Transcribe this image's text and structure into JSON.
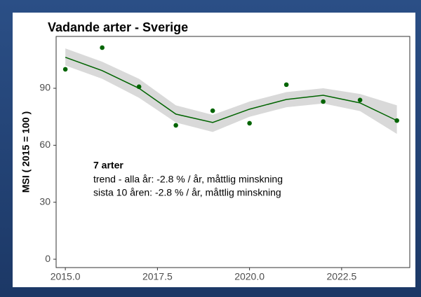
{
  "chart_data": {
    "type": "line",
    "title": "Vadande arter - Sverige",
    "ylabel": "MSI ( 2015 = 100 )",
    "annotations": [
      "7 arter",
      "trend - alla år: -2.8 % / år, måttlig minskning",
      "sista 10 åren: -2.8 % / år, måttlig minskning"
    ],
    "x": [
      2015,
      2016,
      2017,
      2018,
      2019,
      2020,
      2021,
      2022,
      2023,
      2024
    ],
    "series": [
      {
        "style": "points",
        "color": "#006400",
        "values": [
          100,
          111.4,
          90.8,
          70.5,
          78.2,
          71.6,
          91.9,
          83,
          83.8,
          73
        ]
      },
      {
        "style": "trend",
        "color": "#006400",
        "band_color": "#d9d9d9",
        "values": [
          106.3,
          99.3,
          90,
          76.4,
          72,
          79,
          84.1,
          86.3,
          82.3,
          73
        ],
        "lower": [
          102,
          95,
          85,
          72,
          67,
          75,
          80,
          82,
          78,
          66
        ],
        "upper": [
          111,
          104,
          95,
          81,
          76,
          83,
          88,
          90,
          87,
          81
        ]
      }
    ],
    "xlim": [
      2014.75,
      2024.35
    ],
    "ylim": [
      -4.4,
      117.3
    ],
    "xticks": [
      {
        "value": 2015,
        "label": "2015.0"
      },
      {
        "value": 2017.5,
        "label": "2017.5"
      },
      {
        "value": 2020,
        "label": "2020.0"
      },
      {
        "value": 2022.5,
        "label": "2022.5"
      }
    ],
    "yticks": [
      0,
      30,
      60,
      90
    ],
    "grid": false
  }
}
